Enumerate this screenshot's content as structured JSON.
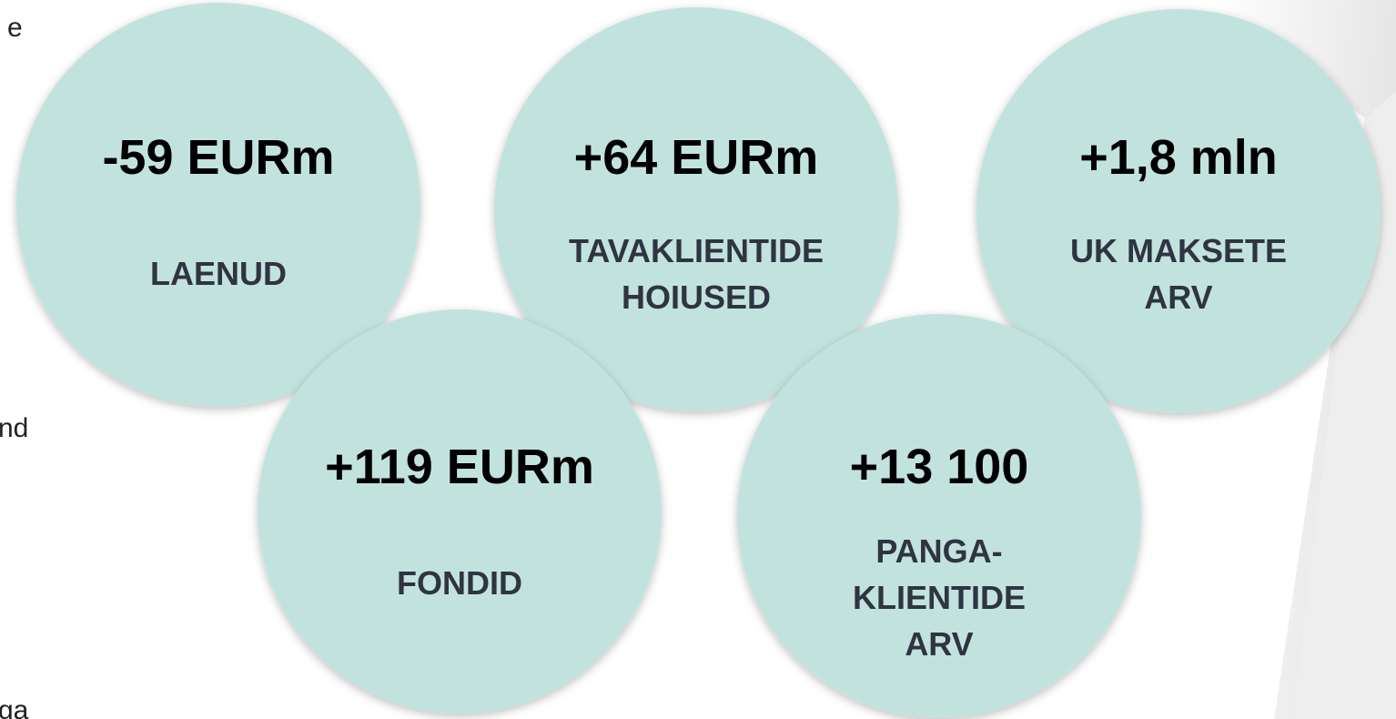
{
  "circles": [
    {
      "value": "-59 EURm",
      "label": [
        "LAENUD"
      ]
    },
    {
      "value": "+64 EURm",
      "label": [
        "TAVAKLIENTIDE",
        "HOIUSED"
      ]
    },
    {
      "value": "+1,8 mln",
      "label": [
        "UK MAKSETE",
        "ARV"
      ]
    },
    {
      "value": "+119 EURm",
      "label": [
        "FONDID"
      ]
    },
    {
      "value": "+13 100",
      "label": [
        "PANGA-",
        "KLIENTIDE",
        "ARV"
      ]
    }
  ],
  "edge_text": [
    "e",
    "nd",
    "ga"
  ]
}
